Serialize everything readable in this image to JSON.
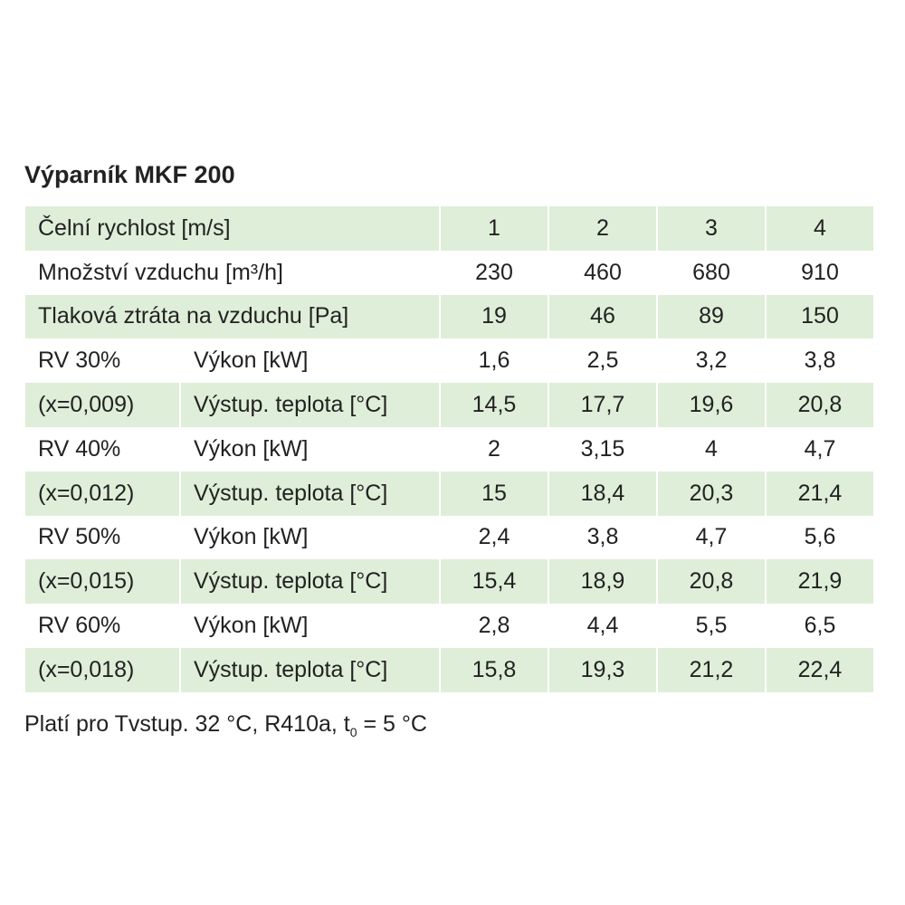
{
  "title": "Výparník MKF 200",
  "table": {
    "rows": [
      [
        "Čelní rychlost [m/s]",
        "1",
        "2",
        "3",
        "4"
      ],
      [
        "Množství vzduchu [m³/h]",
        "230",
        "460",
        "680",
        "910"
      ],
      [
        "Tlaková ztráta na vzduchu [Pa]",
        "19",
        "46",
        "89",
        "150"
      ],
      [
        "RV 30%",
        "Výkon [kW]",
        "1,6",
        "2,5",
        "3,2",
        "3,8"
      ],
      [
        "(x=0,009)",
        "Výstup. teplota [°C]",
        "14,5",
        "17,7",
        "19,6",
        "20,8"
      ],
      [
        "RV 40%",
        "Výkon [kW]",
        "2",
        "3,15",
        "4",
        "4,7"
      ],
      [
        "(x=0,012)",
        "Výstup. teplota [°C]",
        "15",
        "18,4",
        "20,3",
        "21,4"
      ],
      [
        "RV 50%",
        "Výkon [kW]",
        "2,4",
        "3,8",
        "4,7",
        "5,6"
      ],
      [
        "(x=0,015)",
        "Výstup. teplota [°C]",
        "15,4",
        "18,9",
        "20,8",
        "21,9"
      ],
      [
        "RV 60%",
        "Výkon [kW]",
        "2,8",
        "4,4",
        "5,5",
        "6,5"
      ],
      [
        "(x=0,018)",
        "Výstup. teplota [°C]",
        "15,8",
        "19,3",
        "21,2",
        "22,4"
      ]
    ]
  },
  "footnote": {
    "text": "Platí pro Tvstup. 32 °C, R410a, t",
    "subscript": "0",
    "rest": " = 5 °C"
  }
}
